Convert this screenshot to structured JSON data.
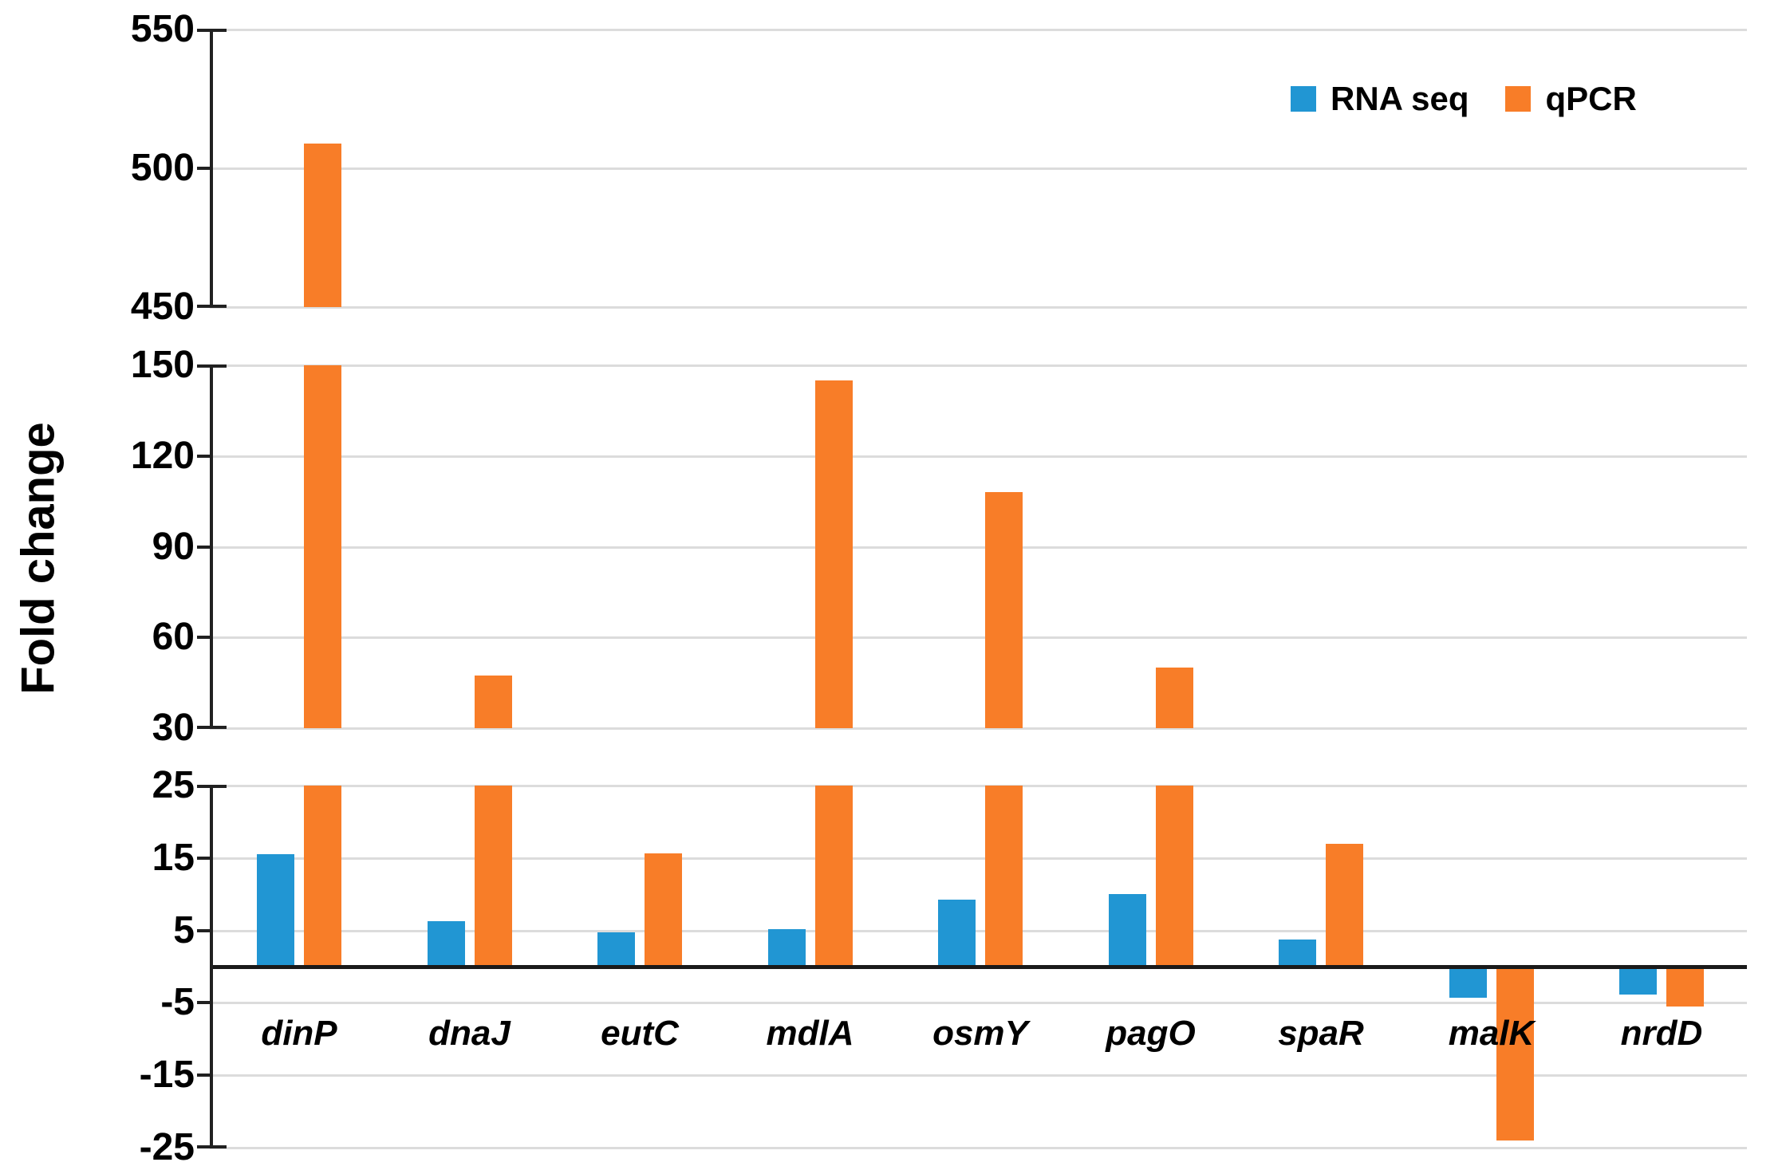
{
  "chart_data": {
    "type": "bar",
    "title": "",
    "ylabel": "Fold change",
    "xlabel": "",
    "grid": true,
    "legend_position": "top-right",
    "broken_y_axis": true,
    "y_segments": [
      {
        "min": 450,
        "max": 550,
        "ticks": [
          550,
          500,
          450
        ]
      },
      {
        "min": 30,
        "max": 150,
        "ticks": [
          150,
          120,
          90,
          60,
          30
        ]
      },
      {
        "min": -25,
        "max": 25,
        "ticks": [
          25,
          15,
          5,
          -5,
          -15,
          -25
        ]
      }
    ],
    "categories": [
      "dinP",
      "dnaJ",
      "eutC",
      "mdlA",
      "osmY",
      "pagO",
      "spaR",
      "malK",
      "nrdD"
    ],
    "series": [
      {
        "name": "RNA seq",
        "color": "#2196D3",
        "values": [
          15.5,
          6.3,
          4.7,
          5.2,
          9.2,
          10,
          3.7,
          -4.3,
          -3.8
        ]
      },
      {
        "name": "qPCR",
        "color": "#F87D28",
        "values": [
          509,
          47.5,
          15.6,
          145,
          108,
          50,
          17,
          -24,
          -5.5
        ]
      }
    ]
  },
  "colors": {
    "rna_seq": "#2196D3",
    "qpcr": "#F87D28",
    "gridline": "#dcdcdc",
    "axis": "#212121",
    "zero_line": "#1a1a1a",
    "text": "#000000"
  }
}
